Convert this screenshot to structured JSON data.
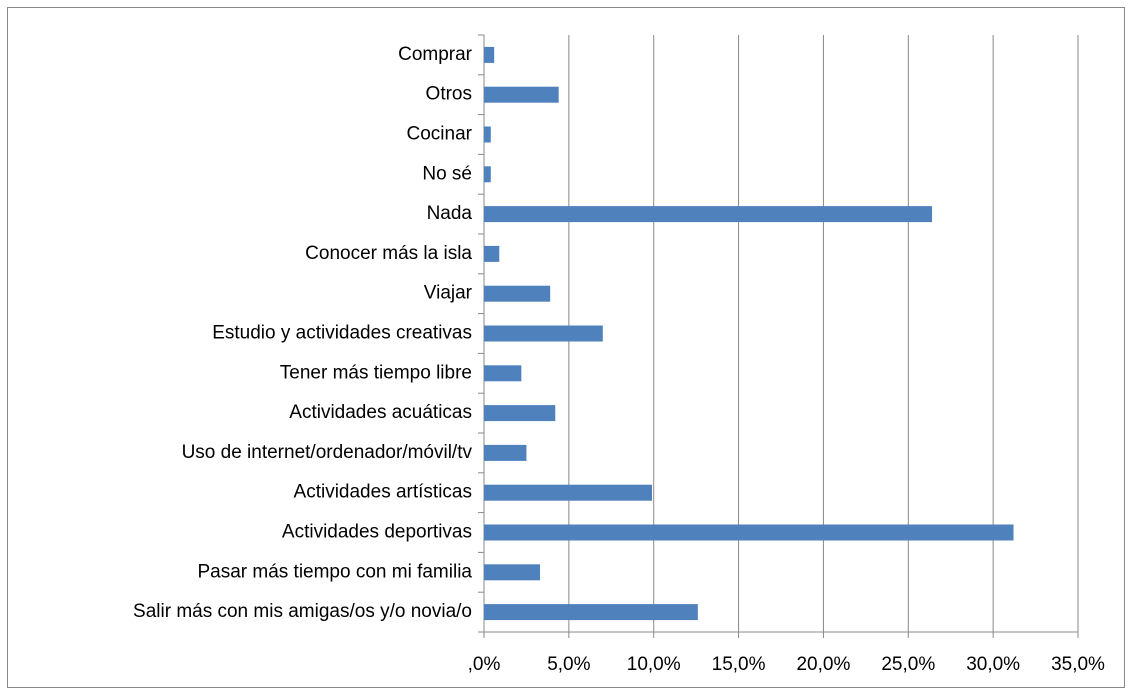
{
  "chart_data": {
    "type": "bar",
    "orientation": "horizontal",
    "categories": [
      "Comprar",
      "Otros",
      "Cocinar",
      "No sé",
      "Nada",
      "Conocer más la isla",
      "Viajar",
      "Estudio y actividades creativas",
      "Tener más tiempo libre",
      "Actividades acuáticas",
      "Uso de internet/ordenador/móvil/tv",
      "Actividades artísticas",
      "Actividades deportivas",
      "Pasar más tiempo con mi familia",
      "Salir más con mis amigas/os y/o novia/o"
    ],
    "values": [
      0.6,
      4.4,
      0.4,
      0.4,
      26.4,
      0.9,
      3.9,
      7.0,
      2.2,
      4.2,
      2.5,
      9.9,
      31.2,
      3.3,
      12.6
    ],
    "color": "#4f81bd",
    "xlim": [
      0,
      35
    ],
    "xticks": [
      {
        "value": 0,
        "label": ",0%"
      },
      {
        "value": 5,
        "label": "5,0%"
      },
      {
        "value": 10,
        "label": "10,0%"
      },
      {
        "value": 15,
        "label": "15,0%"
      },
      {
        "value": 20,
        "label": "20,0%"
      },
      {
        "value": 25,
        "label": "25,0%"
      },
      {
        "value": 30,
        "label": "30,0%"
      },
      {
        "value": 35,
        "label": "35,0%"
      }
    ],
    "grid": true
  }
}
